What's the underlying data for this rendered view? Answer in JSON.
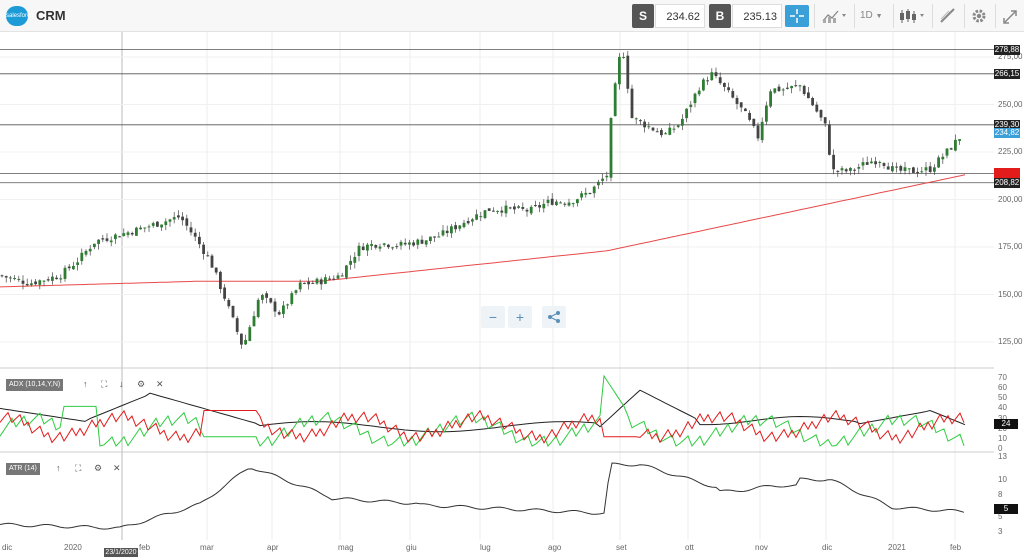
{
  "topbar": {
    "ticker": "CRM",
    "logo_text": "salesforce",
    "sell_label": "S",
    "sell_price": "234.62",
    "buy_label": "B",
    "buy_price": "235.13",
    "timeframe": "1D",
    "icons": [
      "crosshair-icon",
      "chart-type-icon",
      "timeframe-dropdown",
      "candles-icon",
      "settings-icon",
      "draw-icon",
      "expand-icon"
    ]
  },
  "price_axis": {
    "labels": [
      "275,00",
      "250,00",
      "225,00",
      "200,00",
      "175,00",
      "150,00",
      "125,00"
    ]
  },
  "levels": [
    {
      "label": "278,88",
      "color": "#222222"
    },
    {
      "label": "266,15",
      "color": "#222222"
    },
    {
      "label": "239,30",
      "color": "#222222"
    },
    {
      "label": "234,82",
      "color": "#3b9fd8"
    },
    {
      "label": "",
      "color": "#e21b1b"
    },
    {
      "label": "208,82",
      "color": "#222222"
    }
  ],
  "x_axis": {
    "labels": [
      "dic",
      "2020",
      "feb",
      "mar",
      "apr",
      "mag",
      "giu",
      "lug",
      "ago",
      "set",
      "ott",
      "nov",
      "dic",
      "2021",
      "feb"
    ],
    "hover_date": "23/1/2020"
  },
  "adx": {
    "label": "ADX (10,14,Y,N)",
    "axis": [
      "70",
      "60",
      "50",
      "40",
      "30",
      "20",
      "10",
      "0"
    ],
    "value": "24",
    "colors": {
      "adx": "#222222",
      "plus": "#2ecc40",
      "minus": "#e21b1b"
    }
  },
  "atr": {
    "label": "ATR (14)",
    "axis": [
      "13",
      "10",
      "8",
      "5",
      "3"
    ],
    "value": "5"
  },
  "colors": {
    "up": "#2e7d32",
    "down": "#444444",
    "ma": "#e84a4a"
  },
  "zoom": {
    "minus": "−",
    "plus": "+"
  }
}
